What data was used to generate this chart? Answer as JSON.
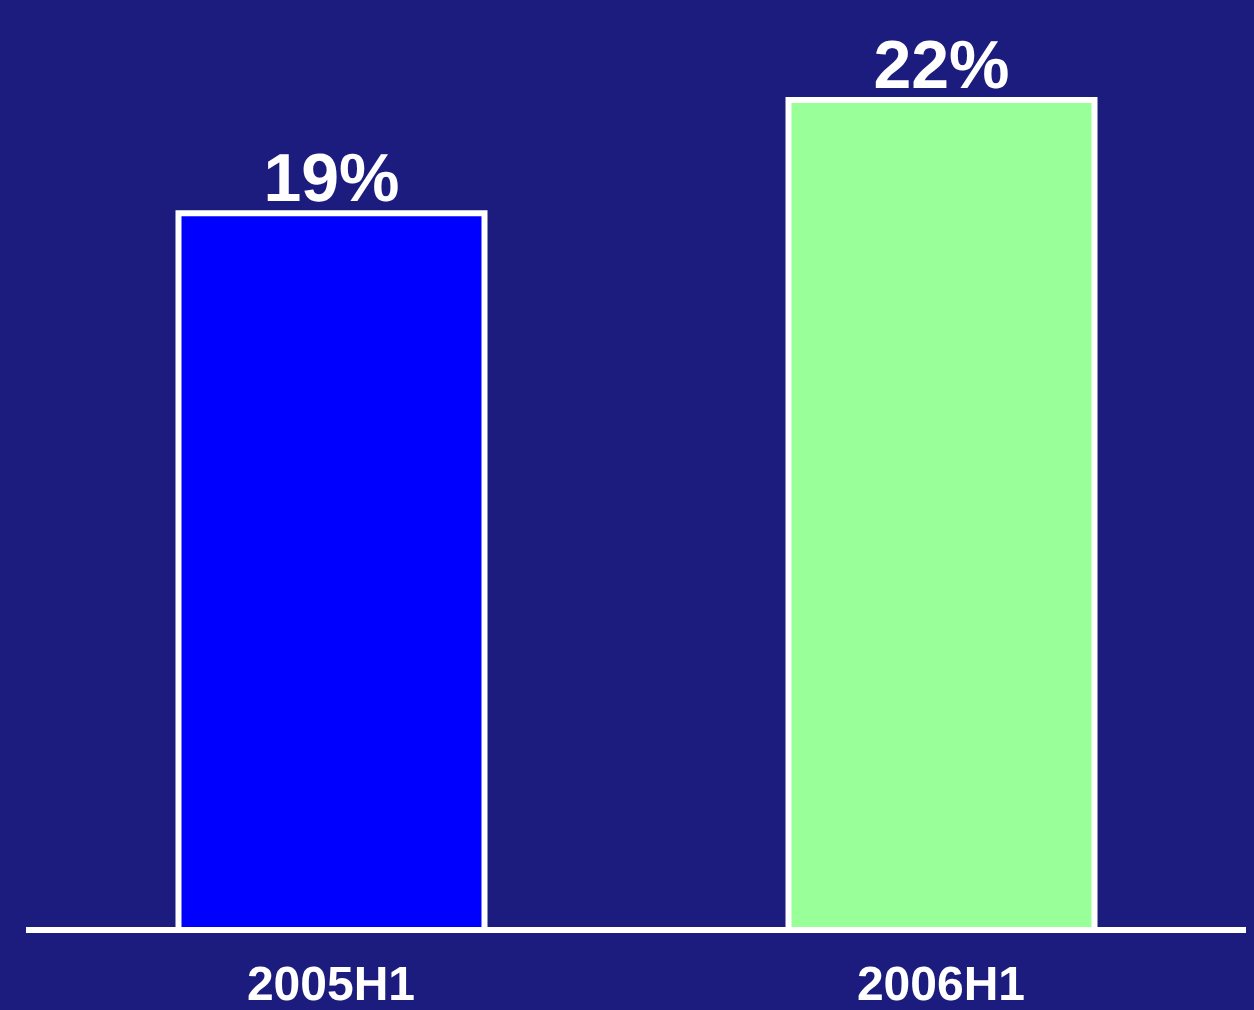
{
  "chart_data": {
    "type": "bar",
    "categories": [
      "2005H1",
      "2006H1"
    ],
    "values": [
      19,
      22
    ],
    "colors": [
      "#0000ff",
      "#99ff99"
    ],
    "value_labels": [
      "19%",
      "22%"
    ]
  }
}
